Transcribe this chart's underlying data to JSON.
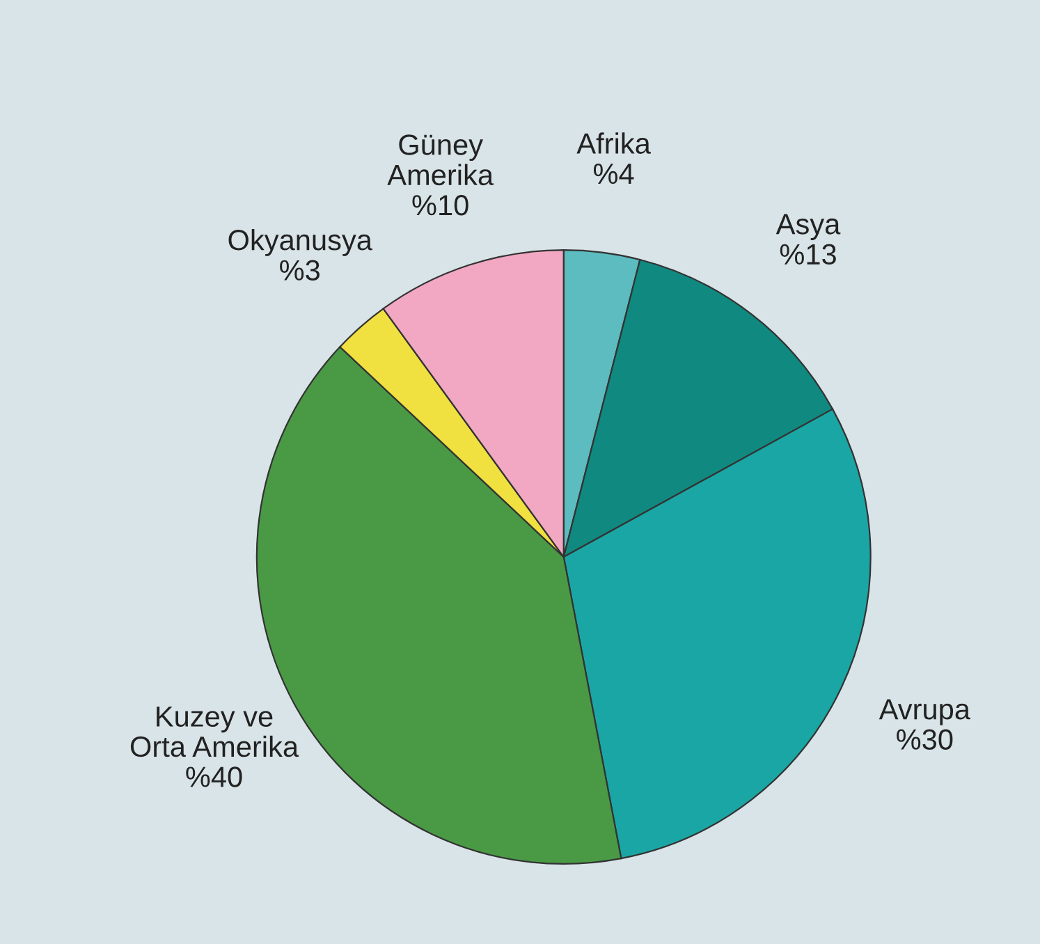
{
  "chart_data": {
    "type": "pie",
    "categories": [
      "Afrika",
      "Asya",
      "Avrupa",
      "Kuzey ve\nOrta Amerika",
      "Okyanusya",
      "Güney\nAmerika"
    ],
    "values": [
      4,
      13,
      30,
      40,
      3,
      10
    ],
    "value_labels": [
      "%4",
      "%13",
      "%30",
      "%40",
      "%3",
      "%10"
    ],
    "colors": [
      "#5cbcc0",
      "#108a80",
      "#1ba6a6",
      "#4a9a45",
      "#f0e040",
      "#f2a8c2"
    ]
  }
}
